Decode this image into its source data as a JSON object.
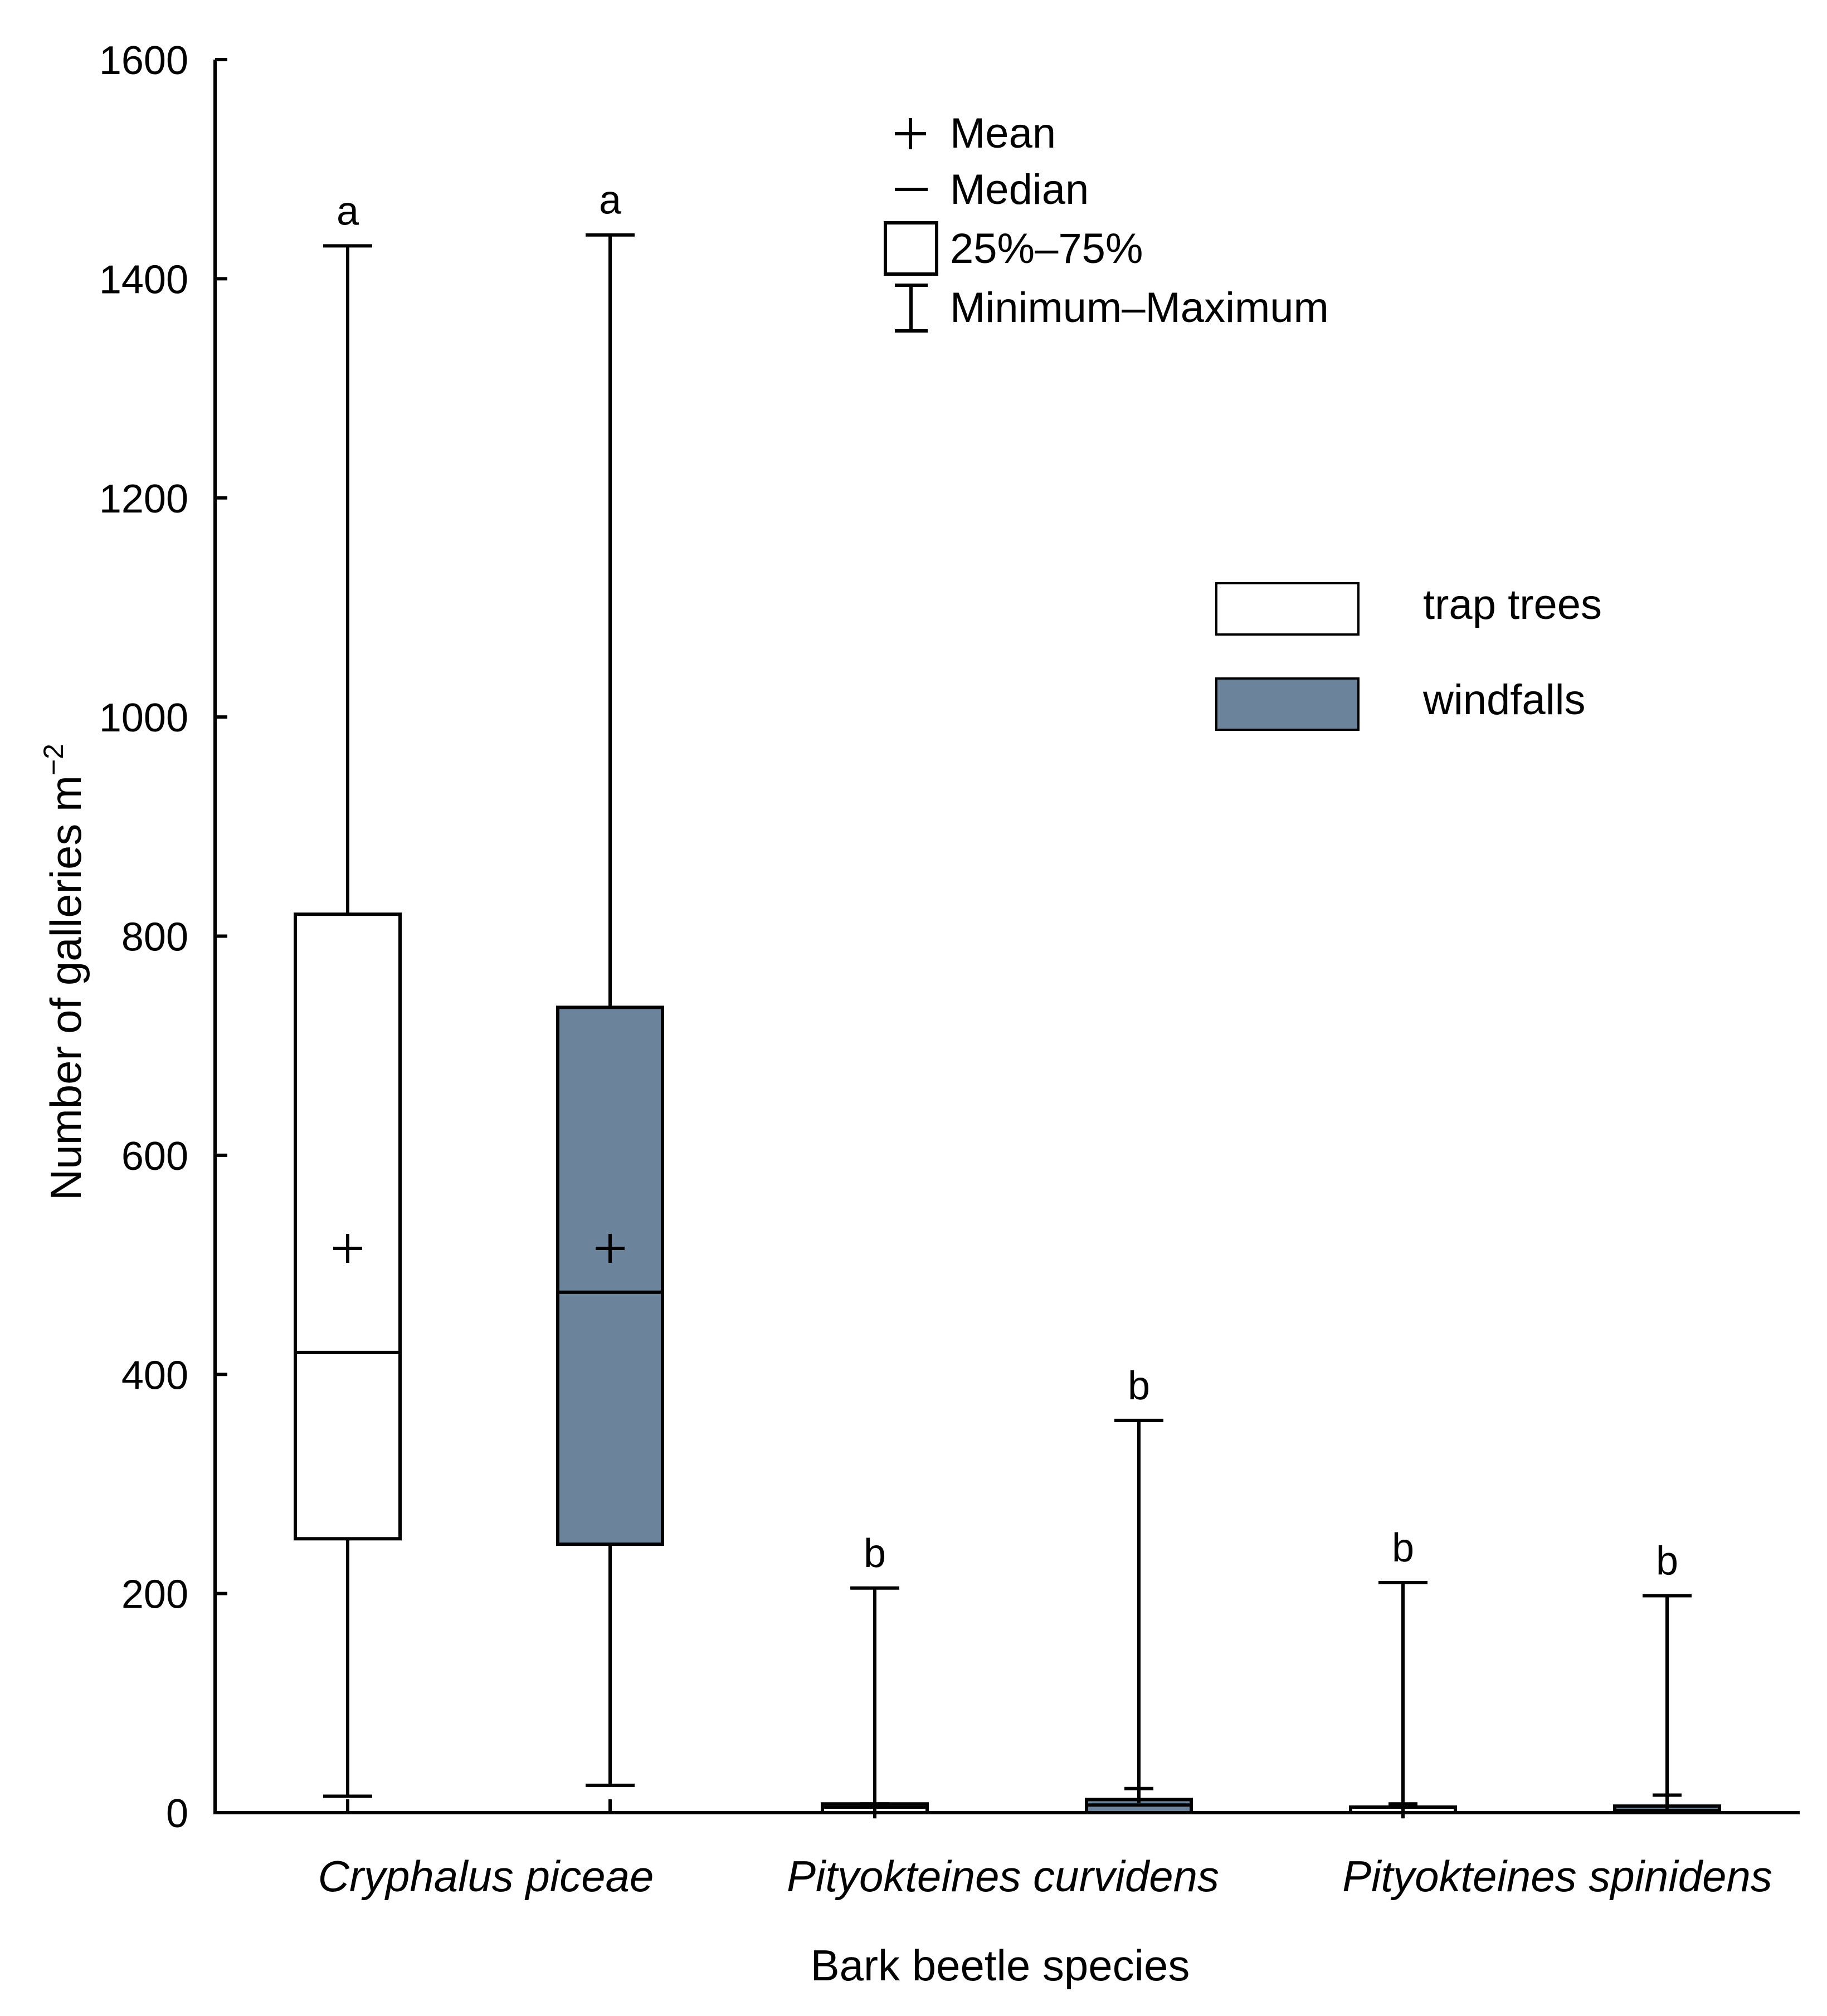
{
  "chart_data": {
    "type": "box",
    "xlabel": "Bark beetle species",
    "ylabel": "Number of galleries m",
    "ylabel_superscript": "−2",
    "ylim": [
      0,
      1600
    ],
    "yticks": [
      "0",
      "200",
      "400",
      "600",
      "800",
      "1000",
      "1200",
      "1400",
      "1600"
    ],
    "categories": [
      "Cryphalus piceae",
      "Pityokteines curvidens",
      "Pityokteines spinidens"
    ],
    "series": [
      {
        "name": "trap trees",
        "color": "#ffffff"
      },
      {
        "name": "windfalls",
        "color": "#6b849b"
      }
    ],
    "boxes": [
      {
        "category": "Cryphalus piceae",
        "series": "trap trees",
        "min": 15,
        "q1": 250,
        "median": 420,
        "q3": 820,
        "max": 1430,
        "mean": 515,
        "group": "a"
      },
      {
        "category": "Cryphalus piceae",
        "series": "windfalls",
        "min": 25,
        "q1": 245,
        "median": 475,
        "q3": 735,
        "max": 1440,
        "mean": 515,
        "group": "a"
      },
      {
        "category": "Pityokteines curvidens",
        "series": "trap trees",
        "min": 0,
        "q1": 0,
        "median": 5,
        "q3": 8,
        "max": 205,
        "mean": 8,
        "group": "b"
      },
      {
        "category": "Pityokteines curvidens",
        "series": "windfalls",
        "min": 0,
        "q1": 0,
        "median": 7,
        "q3": 12,
        "max": 358,
        "mean": 22,
        "group": "b"
      },
      {
        "category": "Pityokteines spinidens",
        "series": "trap trees",
        "min": 0,
        "q1": 0,
        "median": 0,
        "q3": 2,
        "max": 210,
        "mean": 8,
        "group": "b"
      },
      {
        "category": "Pityokteines spinidens",
        "series": "windfalls",
        "min": 0,
        "q1": 0,
        "median": 2,
        "q3": 6,
        "max": 198,
        "mean": 16,
        "group": "b"
      }
    ],
    "legend_symbols": [
      {
        "symbol": "+",
        "label": "Mean"
      },
      {
        "symbol": "—",
        "label": "Median"
      },
      {
        "symbol": "box",
        "label": "25%–75%"
      },
      {
        "symbol": "whisker",
        "label": "Minimum–Maximum"
      }
    ]
  }
}
